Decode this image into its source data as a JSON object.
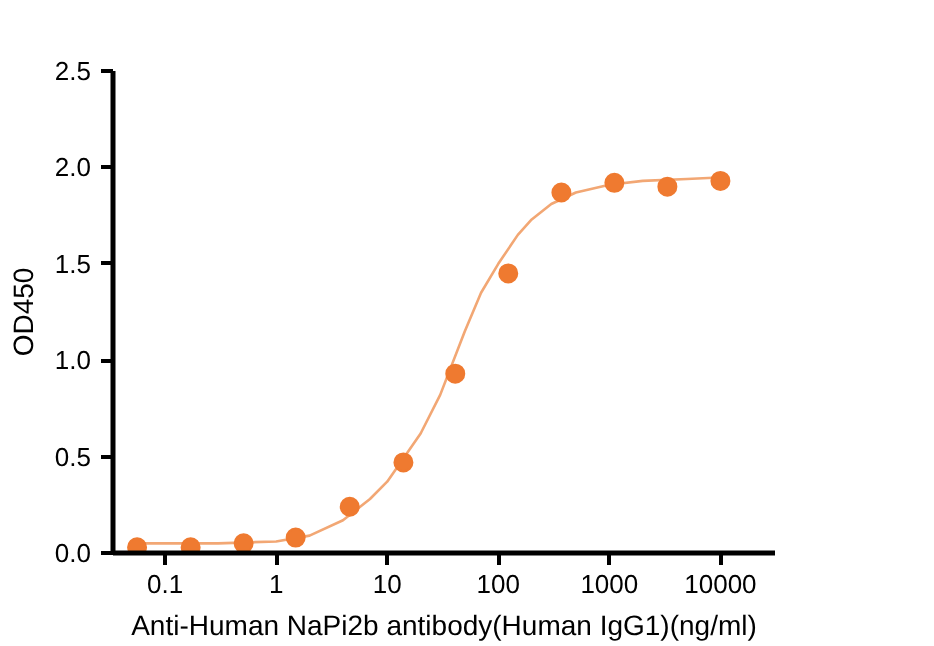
{
  "chart_data": {
    "type": "scatter",
    "xlabel": "Anti-Human NaPi2b antibody(Human IgG1)(ng/ml)",
    "ylabel": "OD450",
    "log": "x",
    "grid": false,
    "marker": "circle",
    "xlim": [
      0.034,
      31000
    ],
    "xticks": [
      0.1,
      1,
      10,
      100,
      1000,
      10000
    ],
    "ylim": [
      0,
      2.5
    ],
    "yticks": [
      {
        "value": 0,
        "label": "0.0"
      },
      {
        "value": 0.5,
        "label": "0.5"
      },
      {
        "value": 1,
        "label": "1.0"
      },
      {
        "value": 1.5,
        "label": "1.5"
      },
      {
        "value": 2,
        "label": "2.0"
      },
      {
        "value": 2.5,
        "label": "2.5"
      }
    ],
    "series": [
      {
        "type": "line",
        "color": "#f2a774",
        "line_style": "solid",
        "marker": "none",
        "x": [
          0.05,
          0.1,
          0.3,
          1,
          2,
          4,
          7,
          10,
          20,
          30,
          50,
          70,
          100,
          150,
          200,
          300,
          500,
          1000,
          2000,
          5000,
          12000
        ],
        "values": [
          0.05,
          0.05,
          0.05,
          0.06,
          0.09,
          0.17,
          0.28,
          0.37,
          0.62,
          0.82,
          1.15,
          1.35,
          1.5,
          1.65,
          1.73,
          1.81,
          1.87,
          1.91,
          1.93,
          1.94,
          1.95
        ]
      },
      {
        "color": "#ef7a30",
        "x": [
          0.056,
          0.17,
          0.51,
          1.5,
          4.6,
          14,
          41,
          123,
          370,
          1110,
          3330,
          10000
        ],
        "values": [
          0.03,
          0.03,
          0.05,
          0.08,
          0.24,
          0.47,
          0.93,
          1.45,
          1.87,
          1.92,
          1.9,
          1.93
        ]
      }
    ]
  }
}
